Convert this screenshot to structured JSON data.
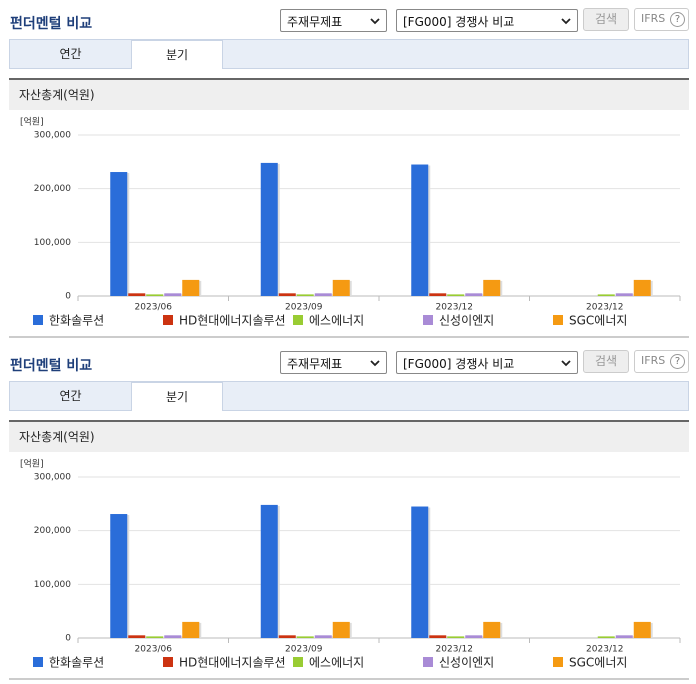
{
  "panels": [
    {
      "title": "펀더멘털 비교",
      "select_1": "주재무제표",
      "select_2": "[FG000] 경쟁사 비교",
      "button": "검색",
      "ifrs": "IFRS",
      "tabs": [
        "연간",
        "분기"
      ],
      "section_title": "자산총계(억원)"
    },
    {
      "title": "펀더멘털 비교",
      "select_1": "주재무제표",
      "select_2": "[FG000] 경쟁사 비교",
      "button": "검색",
      "ifrs": "IFRS",
      "tabs": [
        "연간",
        "분기"
      ],
      "section_title": "자산총계(억원)"
    }
  ],
  "chart_data": [
    {
      "type": "bar",
      "y_unit": "[억원]",
      "categories": [
        "2023/06",
        "2023/09",
        "2023/12",
        "2023/12"
      ],
      "series": [
        {
          "name": "한화솔루션",
          "color": "#2a6dd9",
          "values": [
            231000,
            248000,
            245000,
            null
          ]
        },
        {
          "name": "HD현대에너지솔루션",
          "color": "#cc3311",
          "values": [
            5000,
            5000,
            5000,
            null
          ]
        },
        {
          "name": "에스에너지",
          "color": "#99cc33",
          "values": [
            3000,
            3000,
            3000,
            3000
          ]
        },
        {
          "name": "신성이엔지",
          "color": "#a98bd6",
          "values": [
            5000,
            5000,
            5000,
            5000
          ]
        },
        {
          "name": "SGC에너지",
          "color": "#f59a12",
          "values": [
            30000,
            30000,
            30000,
            30000
          ]
        }
      ],
      "ylim": [
        0,
        300000
      ],
      "yticks": [
        0,
        {
          "value": 100000,
          "label": "100,000"
        },
        {
          "value": 200000,
          "label": "200,000"
        },
        {
          "value": 300000,
          "label": "300,000"
        }
      ],
      "grid": true
    },
    {
      "type": "bar",
      "y_unit": "[억원]",
      "categories": [
        "2023/06",
        "2023/09",
        "2023/12",
        "2023/12"
      ],
      "series": [
        {
          "name": "한화솔루션",
          "color": "#2a6dd9",
          "values": [
            231000,
            248000,
            245000,
            null
          ]
        },
        {
          "name": "HD현대에너지솔루션",
          "color": "#cc3311",
          "values": [
            5000,
            5000,
            5000,
            null
          ]
        },
        {
          "name": "에스에너지",
          "color": "#99cc33",
          "values": [
            3000,
            3000,
            3000,
            3000
          ]
        },
        {
          "name": "신성이엔지",
          "color": "#a98bd6",
          "values": [
            5000,
            5000,
            5000,
            5000
          ]
        },
        {
          "name": "SGC에너지",
          "color": "#f59a12",
          "values": [
            30000,
            30000,
            30000,
            30000
          ]
        }
      ],
      "ylim": [
        0,
        300000
      ],
      "yticks": [
        0,
        {
          "value": 100000,
          "label": "100,000"
        },
        {
          "value": 200000,
          "label": "200,000"
        },
        {
          "value": 300000,
          "label": "300,000"
        }
      ],
      "grid": true
    }
  ]
}
